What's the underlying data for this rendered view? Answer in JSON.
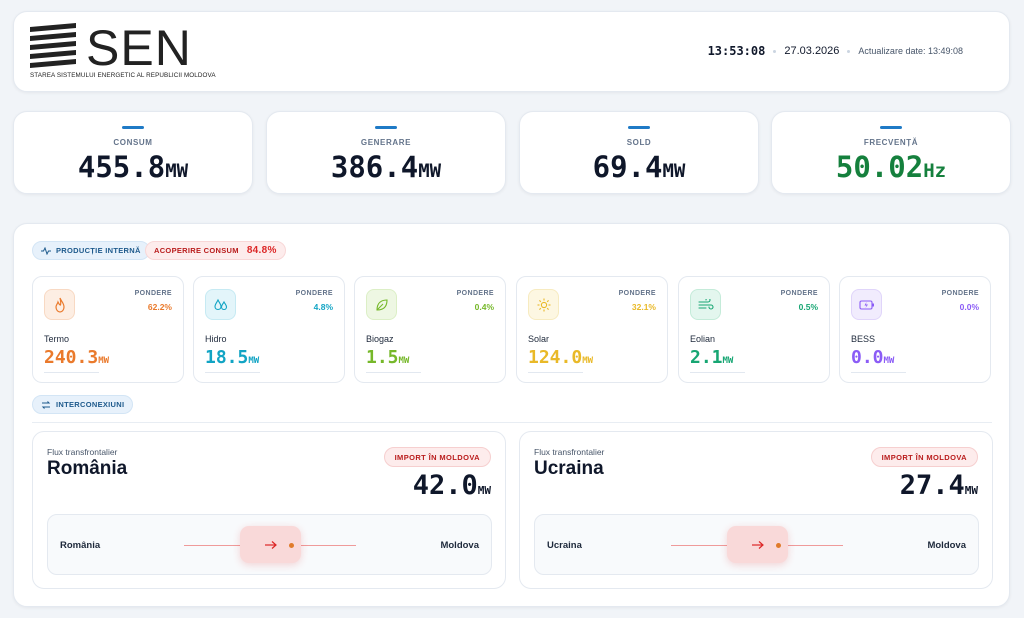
{
  "header": {
    "logo_text": "SEN",
    "logo_subtitle": "STAREA SISTEMULUI ENERGETIC AL REPUBLICII MOLDOVA",
    "time": "13:53:08",
    "date": "27.03.2026",
    "update": "Actualizare date: 13:49:08"
  },
  "stats": [
    {
      "label": "CONSUM",
      "value": "455.8",
      "unit": "MW"
    },
    {
      "label": "GENERARE",
      "value": "386.4",
      "unit": "MW"
    },
    {
      "label": "SOLD",
      "value": "69.4",
      "unit": "MW"
    },
    {
      "label": "FRECVENȚĂ",
      "value": "50.02",
      "unit": "Hz",
      "color": "#15803d"
    }
  ],
  "production": {
    "pill_label": "PRODUCȚIE INTERNĂ",
    "coverage_label": "ACOPERIRE CONSUM",
    "coverage_value": "84.8%",
    "weight_label": "PONDERE",
    "sources": [
      {
        "name": "Termo",
        "value": "240.3",
        "unit": "MW",
        "weight": "62.2%",
        "color": "#ea7a2c",
        "icon": "flame-icon"
      },
      {
        "name": "Hidro",
        "value": "18.5",
        "unit": "MW",
        "weight": "4.8%",
        "color": "#11a4c4",
        "icon": "water-drops-icon"
      },
      {
        "name": "Biogaz",
        "value": "1.5",
        "unit": "MW",
        "weight": "0.4%",
        "color": "#76b82a",
        "icon": "leaf-icon"
      },
      {
        "name": "Solar",
        "value": "124.0",
        "unit": "MW",
        "weight": "32.1%",
        "color": "#e9b928",
        "icon": "sun-icon"
      },
      {
        "name": "Eolian",
        "value": "2.1",
        "unit": "MW",
        "weight": "0.5%",
        "color": "#17a673",
        "icon": "wind-icon"
      },
      {
        "name": "BESS",
        "value": "0.0",
        "unit": "MW",
        "weight": "0.0%",
        "color": "#8b5cf6",
        "icon": "battery-icon"
      }
    ]
  },
  "interconnections": {
    "pill_label": "INTERCONEXIUNI",
    "flows": [
      {
        "caption": "Flux transfrontalier",
        "country": "România",
        "badge": "IMPORT ÎN MOLDOVA",
        "value": "42.0",
        "unit": "MW",
        "from": "România",
        "to": "Moldova"
      },
      {
        "caption": "Flux transfrontalier",
        "country": "Ucraina",
        "badge": "IMPORT ÎN MOLDOVA",
        "value": "27.4",
        "unit": "MW",
        "from": "Ucraina",
        "to": "Moldova"
      }
    ]
  }
}
